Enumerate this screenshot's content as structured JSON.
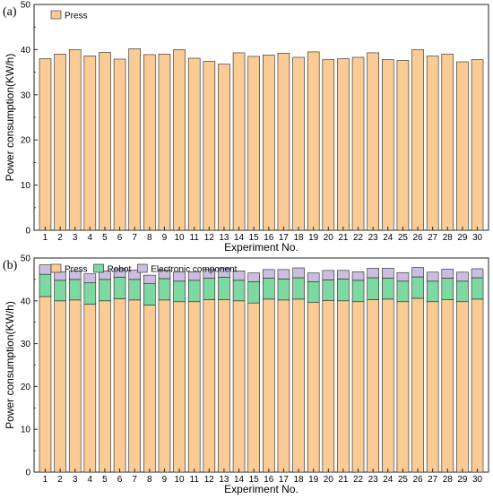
{
  "colors": {
    "press": "#fbcb96",
    "robot": "#7dd8a2",
    "electronic": "#cbbde0",
    "outline": "#222222"
  },
  "chart_data": [
    {
      "type": "bar",
      "panel_label": "(a)",
      "xlabel": "Experiment No.",
      "ylabel": "Power consumption(KW/h)",
      "ylim": [
        0,
        50
      ],
      "yticks": [
        "0",
        "10",
        "20",
        "30",
        "40",
        "50"
      ],
      "categories": [
        "1",
        "2",
        "3",
        "4",
        "5",
        "6",
        "7",
        "8",
        "9",
        "10",
        "11",
        "12",
        "13",
        "14",
        "15",
        "16",
        "17",
        "18",
        "19",
        "20",
        "21",
        "22",
        "23",
        "24",
        "25",
        "26",
        "27",
        "28",
        "29",
        "30"
      ],
      "legend_position": "top-left",
      "series": [
        {
          "name": "Press",
          "color": "#fbcb96",
          "values": [
            38.0,
            39.0,
            40.0,
            38.6,
            39.4,
            37.9,
            40.2,
            38.9,
            39.0,
            40.0,
            38.1,
            37.4,
            36.8,
            39.3,
            38.5,
            38.8,
            39.2,
            38.3,
            39.5,
            37.8,
            38.0,
            38.3,
            39.3,
            37.8,
            37.6,
            40.0,
            38.6,
            39.0,
            37.3,
            37.8
          ]
        }
      ]
    },
    {
      "type": "bar",
      "stacked": true,
      "panel_label": "(b)",
      "xlabel": "Experiment No.",
      "ylabel": "Power consumption(KW/h)",
      "ylim": [
        0,
        50
      ],
      "yticks": [
        "0",
        "10",
        "20",
        "30",
        "40",
        "50"
      ],
      "categories": [
        "1",
        "2",
        "3",
        "4",
        "5",
        "6",
        "7",
        "8",
        "9",
        "10",
        "11",
        "12",
        "13",
        "14",
        "15",
        "16",
        "17",
        "18",
        "19",
        "20",
        "21",
        "22",
        "23",
        "24",
        "25",
        "26",
        "27",
        "28",
        "29",
        "30"
      ],
      "legend_position": "top-left",
      "series": [
        {
          "name": "Press",
          "color": "#fbcb96",
          "values": [
            41.0,
            40.0,
            40.2,
            39.2,
            40.0,
            40.5,
            40.2,
            39.0,
            40.2,
            39.8,
            39.8,
            40.3,
            40.3,
            40.0,
            39.5,
            40.4,
            40.2,
            40.4,
            39.6,
            40.1,
            40.0,
            39.8,
            40.3,
            40.4,
            39.8,
            40.6,
            39.8,
            40.3,
            39.8,
            40.4
          ]
        },
        {
          "name": "Robot",
          "color": "#7dd8a2",
          "values": [
            5.2,
            4.8,
            4.8,
            5.0,
            5.0,
            5.0,
            4.8,
            5.0,
            5.0,
            4.8,
            5.0,
            5.0,
            5.2,
            4.8,
            5.0,
            4.9,
            4.9,
            5.0,
            4.9,
            4.8,
            5.1,
            5.0,
            5.1,
            4.9,
            4.8,
            5.0,
            4.8,
            5.0,
            4.8,
            5.0
          ]
        },
        {
          "name": "Electronic component",
          "color": "#cbbde0",
          "values": [
            2.2,
            2.0,
            2.0,
            2.1,
            2.0,
            2.0,
            2.2,
            2.0,
            2.0,
            2.2,
            2.0,
            2.1,
            2.2,
            2.2,
            2.0,
            2.0,
            2.2,
            2.3,
            2.0,
            2.2,
            2.0,
            2.0,
            2.2,
            2.3,
            2.0,
            2.2,
            2.1,
            2.1,
            2.1,
            2.1
          ]
        }
      ]
    }
  ]
}
